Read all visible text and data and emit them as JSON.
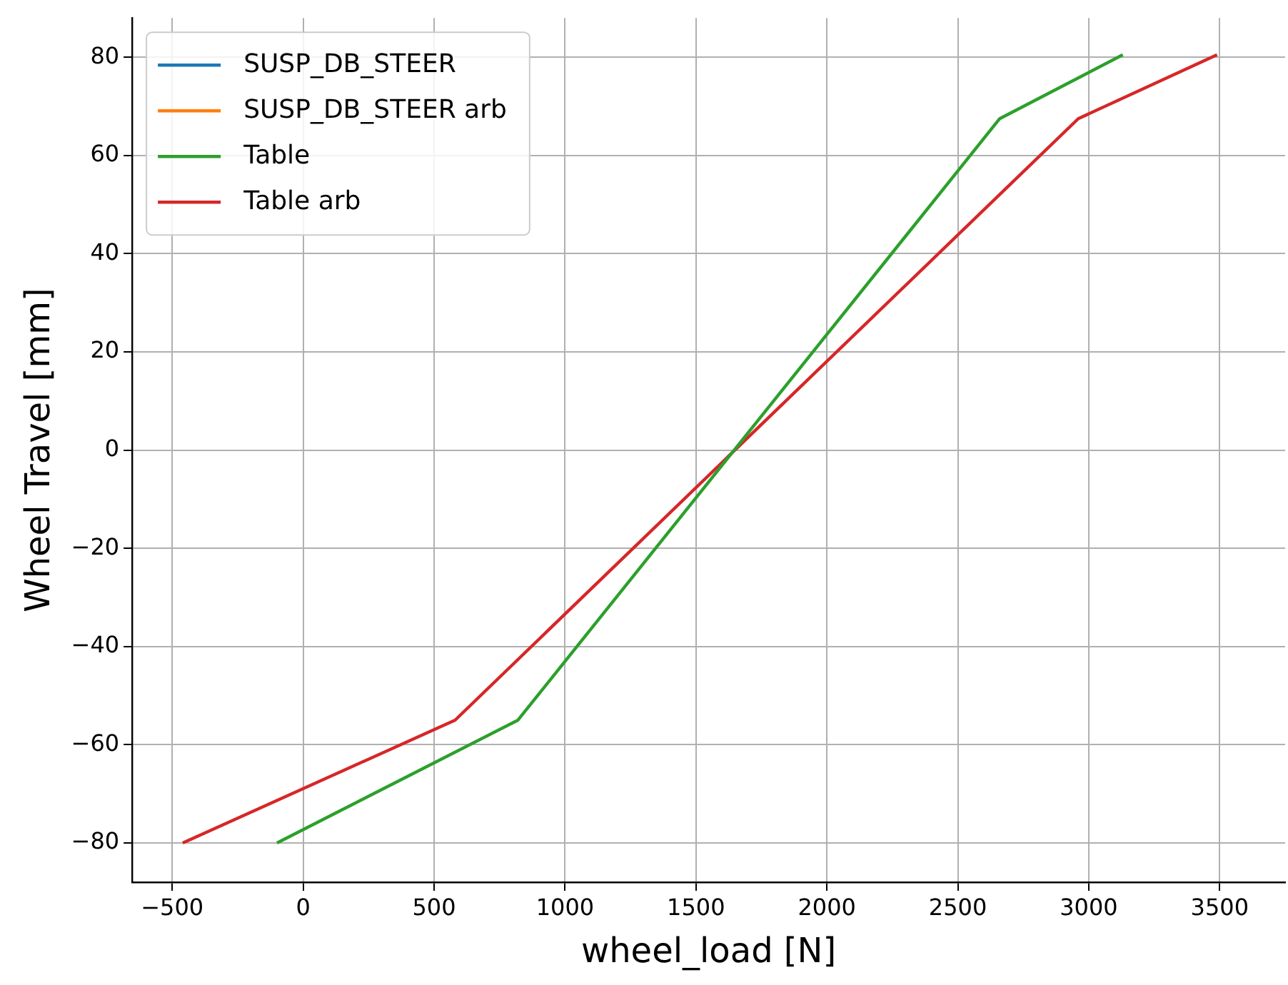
{
  "chart_data": {
    "type": "line",
    "xlabel": "wheel_load [N]",
    "ylabel": "Wheel Travel [mm]",
    "xlim": [
      -653,
      3750
    ],
    "xticks": [
      -500,
      0,
      500,
      1000,
      1500,
      2000,
      2500,
      3000,
      3500
    ],
    "ylim": [
      -88,
      88
    ],
    "yticks": [
      -80,
      -60,
      -40,
      -20,
      0,
      20,
      40,
      60,
      80
    ],
    "grid": true,
    "legend": "top left",
    "series": [
      {
        "name": "SUSP_DB_STEER",
        "color": "#1f77b4"
      },
      {
        "name": "SUSP_DB_STEER arb",
        "color": "#ff7f0e"
      },
      {
        "name": "Table",
        "color": "#2ca02c",
        "x": [
          -100,
          820,
          2660,
          3130
        ],
        "values": [
          -80,
          -55,
          67.5,
          80.5
        ]
      },
      {
        "name": "Table arb",
        "color": "#d62728",
        "x": [
          -460,
          580,
          2960,
          3490
        ],
        "values": [
          -80,
          -55,
          67.5,
          80.5
        ]
      }
    ]
  }
}
